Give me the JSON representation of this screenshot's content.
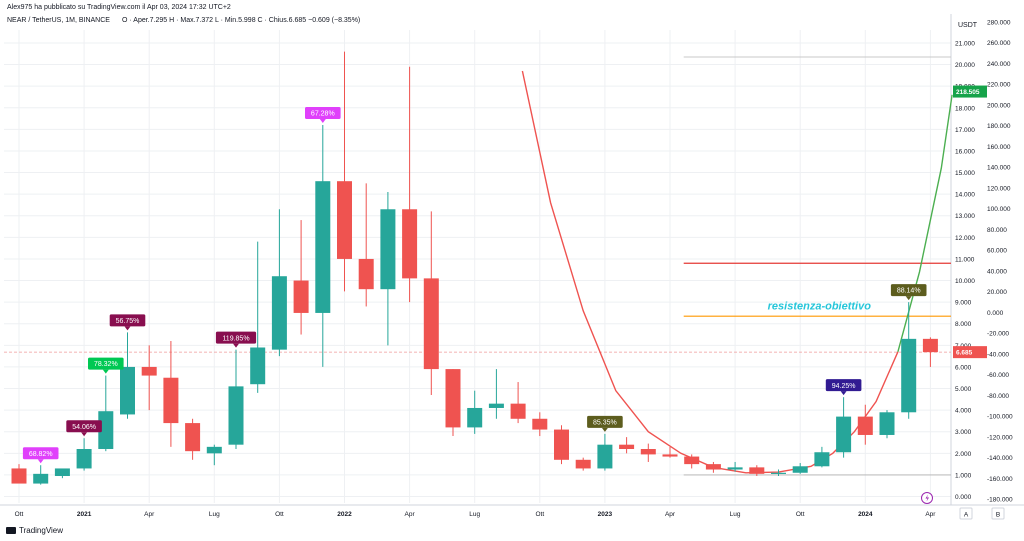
{
  "header": {
    "published": "Alex975 ha pubblicato su TradingView.com il Apr 03, 2024 17:32 UTC+2",
    "symbol": "NEAR / TetherUS, 1M, BINANCE",
    "ohlc": "O · Aper.7.295  H · Max.7.372  L · Min.5.998  C · Chius.6.685  −0.609 (−8.35%)"
  },
  "footer": {
    "brand": "TradingView",
    "auto_label": "A",
    "log_label": "B"
  },
  "colors": {
    "up": "#26a69a",
    "down": "#ef5350",
    "grid": "#eef0f3"
  },
  "chart_data": {
    "type": "candlestick",
    "title": "NEAR / TetherUS, 1M, BINANCE",
    "currency": "USDT",
    "x_ticks": [
      "Ott",
      "2021",
      "Apr",
      "Lug",
      "Ott",
      "2022",
      "Apr",
      "Lug",
      "Ott",
      "2023",
      "Apr",
      "Lug",
      "Ott",
      "2024",
      "Apr"
    ],
    "y_ticks_left": [
      "0.000",
      "1.000",
      "2.000",
      "3.000",
      "4.000",
      "5.000",
      "6.000",
      "7.000",
      "8.000",
      "9.000",
      "10.000",
      "11.000",
      "12.000",
      "13.000",
      "14.000",
      "15.000",
      "16.000",
      "17.000",
      "18.000",
      "19.000",
      "20.000",
      "21.000"
    ],
    "y_ticks_right": [
      "-180.000",
      "-160.000",
      "-140.000",
      "-120.000",
      "-100.000",
      "-80.000",
      "-60.000",
      "-40.000",
      "-20.000",
      "0.000",
      "20.000",
      "40.000",
      "60.000",
      "80.000",
      "100.000",
      "120.000",
      "140.000",
      "160.000",
      "180.000",
      "200.000",
      "220.000",
      "240.000",
      "260.000",
      "280.000"
    ],
    "ylim": [
      -0.3,
      21.6
    ],
    "candles": [
      {
        "month": "2020-10",
        "o": 1.3,
        "h": 1.5,
        "l": 0.6,
        "c": 0.6
      },
      {
        "month": "2020-11",
        "o": 0.6,
        "h": 1.45,
        "l": 0.55,
        "c": 1.05
      },
      {
        "month": "2020-12",
        "o": 0.95,
        "h": 1.25,
        "l": 0.85,
        "c": 1.3
      },
      {
        "month": "2021-01",
        "o": 1.3,
        "h": 2.7,
        "l": 1.2,
        "c": 2.2
      },
      {
        "month": "2021-02",
        "o": 2.2,
        "h": 5.6,
        "l": 2.1,
        "c": 3.95
      },
      {
        "month": "2021-03",
        "o": 3.8,
        "h": 7.6,
        "l": 3.6,
        "c": 6.0
      },
      {
        "month": "2021-04",
        "o": 6.0,
        "h": 7.0,
        "l": 4.0,
        "c": 5.6
      },
      {
        "month": "2021-05",
        "o": 5.5,
        "h": 7.2,
        "l": 2.3,
        "c": 3.4
      },
      {
        "month": "2021-06",
        "o": 3.4,
        "h": 3.6,
        "l": 1.7,
        "c": 2.1
      },
      {
        "month": "2021-07",
        "o": 2.0,
        "h": 2.4,
        "l": 1.45,
        "c": 2.3
      },
      {
        "month": "2021-08",
        "o": 2.4,
        "h": 6.8,
        "l": 2.2,
        "c": 5.1
      },
      {
        "month": "2021-09",
        "o": 5.2,
        "h": 11.8,
        "l": 4.8,
        "c": 6.9
      },
      {
        "month": "2021-10",
        "o": 6.8,
        "h": 13.3,
        "l": 6.5,
        "c": 10.2
      },
      {
        "month": "2021-11",
        "o": 10.0,
        "h": 12.8,
        "l": 7.5,
        "c": 8.5
      },
      {
        "month": "2021-12",
        "o": 8.5,
        "h": 17.2,
        "l": 6.0,
        "c": 14.6
      },
      {
        "month": "2022-01",
        "o": 14.6,
        "h": 20.6,
        "l": 9.5,
        "c": 11.0
      },
      {
        "month": "2022-02",
        "o": 11.0,
        "h": 14.5,
        "l": 8.8,
        "c": 9.6
      },
      {
        "month": "2022-03",
        "o": 9.6,
        "h": 14.1,
        "l": 7.0,
        "c": 13.3
      },
      {
        "month": "2022-04",
        "o": 13.3,
        "h": 19.9,
        "l": 9.0,
        "c": 10.1
      },
      {
        "month": "2022-05",
        "o": 10.1,
        "h": 13.2,
        "l": 4.7,
        "c": 5.9
      },
      {
        "month": "2022-06",
        "o": 5.9,
        "h": 5.9,
        "l": 2.8,
        "c": 3.2
      },
      {
        "month": "2022-07",
        "o": 3.2,
        "h": 4.9,
        "l": 2.9,
        "c": 4.1
      },
      {
        "month": "2022-08",
        "o": 4.1,
        "h": 5.9,
        "l": 3.6,
        "c": 4.3
      },
      {
        "month": "2022-09",
        "o": 4.3,
        "h": 5.3,
        "l": 3.4,
        "c": 3.6
      },
      {
        "month": "2022-10",
        "o": 3.6,
        "h": 3.9,
        "l": 2.8,
        "c": 3.1
      },
      {
        "month": "2022-11",
        "o": 3.1,
        "h": 3.3,
        "l": 1.5,
        "c": 1.7
      },
      {
        "month": "2022-12",
        "o": 1.7,
        "h": 1.8,
        "l": 1.2,
        "c": 1.3
      },
      {
        "month": "2023-01",
        "o": 1.3,
        "h": 2.9,
        "l": 1.2,
        "c": 2.4
      },
      {
        "month": "2023-02",
        "o": 2.4,
        "h": 2.75,
        "l": 2.0,
        "c": 2.2
      },
      {
        "month": "2023-03",
        "o": 2.2,
        "h": 2.45,
        "l": 1.6,
        "c": 1.95
      },
      {
        "month": "2023-04",
        "o": 1.95,
        "h": 2.3,
        "l": 1.8,
        "c": 1.85
      },
      {
        "month": "2023-05",
        "o": 1.85,
        "h": 1.95,
        "l": 1.3,
        "c": 1.5
      },
      {
        "month": "2023-06",
        "o": 1.5,
        "h": 1.6,
        "l": 1.1,
        "c": 1.25
      },
      {
        "month": "2023-07",
        "o": 1.25,
        "h": 1.6,
        "l": 1.15,
        "c": 1.35
      },
      {
        "month": "2023-08",
        "o": 1.35,
        "h": 1.45,
        "l": 0.95,
        "c": 1.05
      },
      {
        "month": "2023-09",
        "o": 1.05,
        "h": 1.25,
        "l": 0.95,
        "c": 1.1
      },
      {
        "month": "2023-10",
        "o": 1.1,
        "h": 1.55,
        "l": 1.05,
        "c": 1.4
      },
      {
        "month": "2023-11",
        "o": 1.4,
        "h": 2.3,
        "l": 1.35,
        "c": 2.05
      },
      {
        "month": "2023-12",
        "o": 2.05,
        "h": 4.6,
        "l": 1.8,
        "c": 3.7
      },
      {
        "month": "2024-01",
        "o": 3.7,
        "h": 4.25,
        "l": 2.4,
        "c": 2.85
      },
      {
        "month": "2024-02",
        "o": 2.85,
        "h": 4.0,
        "l": 2.7,
        "c": 3.9
      },
      {
        "month": "2024-03",
        "o": 3.9,
        "h": 9.0,
        "l": 3.6,
        "c": 7.3
      },
      {
        "month": "2024-04",
        "o": 7.3,
        "h": 7.37,
        "l": 6.0,
        "c": 6.685
      }
    ],
    "labels": [
      {
        "text": "68.82%",
        "at": 1,
        "y": 1.45,
        "bg": "#e040fb",
        "fg": "#ffffff"
      },
      {
        "text": "54.06%",
        "at": 3,
        "y": 2.7,
        "bg": "#880e4f",
        "fg": "#ffffff"
      },
      {
        "text": "78.32%",
        "at": 4,
        "y": 5.6,
        "bg": "#00c853",
        "fg": "#ffffff"
      },
      {
        "text": "56.75%",
        "at": 5,
        "y": 7.6,
        "bg": "#880e4f",
        "fg": "#ffffff"
      },
      {
        "text": "119.85%",
        "at": 10,
        "y": 6.8,
        "bg": "#880e4f",
        "fg": "#ffffff"
      },
      {
        "text": "67.28%",
        "at": 14,
        "y": 17.2,
        "bg": "#e040fb",
        "fg": "#ffffff"
      },
      {
        "text": "85.35%",
        "at": 27,
        "y": 2.9,
        "bg": "#5d5d1e",
        "fg": "#ffffff"
      },
      {
        "text": "94.25%",
        "at": 38,
        "y": 4.6,
        "bg": "#311b92",
        "fg": "#ffffff"
      },
      {
        "text": "88.14%",
        "at": 41,
        "y": 9.0,
        "bg": "#5d5d1e",
        "fg": "#ffffff"
      }
    ],
    "hlines": [
      {
        "y": 20.35,
        "color": "#c8c8c8",
        "from": 31,
        "width": 1
      },
      {
        "y": 10.8,
        "color": "#e53935",
        "from": 31,
        "width": 1.2
      },
      {
        "y": 8.35,
        "color": "#ff9800",
        "from": 31,
        "width": 1.2
      },
      {
        "y": 6.685,
        "color": "#ef9a9a",
        "from": -1,
        "width": 0.8,
        "dash": "3,2"
      },
      {
        "y": 1.0,
        "color": "#b0b0b0",
        "from": 31,
        "width": 0.8
      }
    ],
    "annotation": {
      "text": "resistenza-obiettivo",
      "at": 34.5,
      "y": 8.65,
      "color": "#26c6da"
    },
    "curve": {
      "points": [
        [
          23.2,
          19.7
        ],
        [
          24.5,
          13.6
        ],
        [
          26,
          8.6
        ],
        [
          27.5,
          4.9
        ],
        [
          29,
          3.0
        ],
        [
          30.5,
          2.0
        ],
        [
          32,
          1.35
        ],
        [
          33.5,
          1.1
        ],
        [
          35,
          1.13
        ],
        [
          36.5,
          1.4
        ],
        [
          37.5,
          2.0
        ],
        [
          38.5,
          3.0
        ],
        [
          39.5,
          4.4
        ],
        [
          40.5,
          6.7
        ],
        [
          41.5,
          10.4
        ],
        [
          42.5,
          15.2
        ],
        [
          43,
          18.6
        ]
      ],
      "red_until_index": 13,
      "red": "#ef5350",
      "green": "#4caf50"
    },
    "price_badges": [
      {
        "text": "218.505",
        "y": 18.75,
        "bg": "#16a34a",
        "fg": "#ffffff"
      },
      {
        "text": "6.685",
        "y": 6.685,
        "bg": "#ef5350",
        "fg": "#ffffff"
      }
    ]
  }
}
